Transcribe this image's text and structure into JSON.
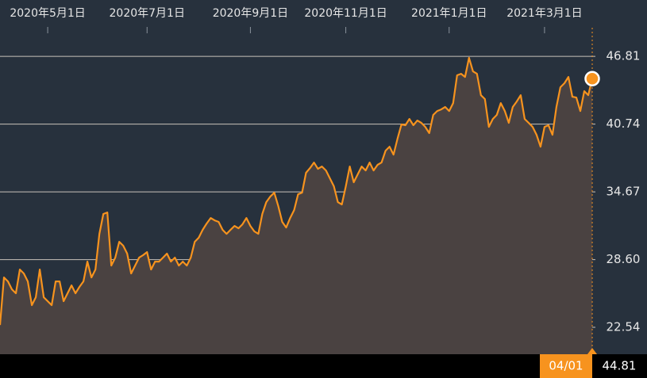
{
  "chart_data": {
    "type": "area",
    "xlim": [
      0,
      149
    ],
    "xticks": [
      {
        "value": 12,
        "label": "2020年5月1日"
      },
      {
        "value": 37,
        "label": "2020年7月1日"
      },
      {
        "value": 63,
        "label": "2020年9月1日"
      },
      {
        "value": 87,
        "label": "2020年11月1日"
      },
      {
        "value": 113,
        "label": "2021年1月1日"
      },
      {
        "value": 137,
        "label": "2021年3月1日"
      }
    ],
    "ylim": [
      20.13,
      49.37
    ],
    "yticks": [
      46.81,
      40.74,
      34.67,
      {
        "value": 28.6,
        "label": "28.60"
      },
      22.54
    ],
    "grid": true,
    "end_date_label": "04/01",
    "series": [
      {
        "color": "#f7931e",
        "values": [
          22.75,
          27.01,
          26.65,
          25.94,
          25.59,
          27.72,
          27.36,
          26.65,
          24.52,
          25.23,
          27.72,
          25.23,
          24.88,
          24.52,
          26.65,
          26.65,
          24.88,
          25.59,
          26.3,
          25.59,
          26.16,
          26.65,
          28.43,
          27.01,
          27.72,
          30.91,
          32.69,
          32.83,
          28.07,
          28.78,
          30.2,
          29.85,
          29.14,
          27.36,
          28.07,
          28.78,
          29.0,
          29.28,
          27.72,
          28.43,
          28.43,
          28.78,
          29.14,
          28.43,
          28.78,
          28.07,
          28.43,
          28.07,
          28.78,
          30.2,
          30.56,
          31.27,
          31.83,
          32.33,
          32.12,
          31.98,
          31.27,
          30.91,
          31.27,
          31.62,
          31.41,
          31.76,
          32.33,
          31.62,
          31.13,
          30.91,
          32.69,
          33.75,
          34.25,
          34.6,
          33.4,
          31.98,
          31.48,
          32.33,
          33.04,
          34.46,
          34.6,
          36.38,
          36.8,
          37.3,
          36.73,
          36.94,
          36.59,
          35.88,
          35.17,
          33.75,
          33.54,
          35.17,
          36.94,
          35.53,
          36.24,
          36.94,
          36.59,
          37.3,
          36.59,
          37.09,
          37.3,
          38.36,
          38.72,
          38.01,
          39.43,
          40.71,
          40.64,
          41.2,
          40.64,
          41.06,
          40.85,
          40.49,
          39.93,
          41.56,
          41.91,
          42.05,
          42.27,
          41.91,
          42.62,
          45.11,
          45.25,
          44.96,
          46.67,
          45.46,
          45.25,
          43.33,
          42.98,
          40.49,
          41.2,
          41.56,
          42.62,
          41.91,
          40.85,
          42.27,
          42.76,
          43.33,
          41.2,
          40.85,
          40.49,
          39.78,
          38.72,
          40.49,
          40.64,
          39.78,
          42.27,
          44.04,
          44.4,
          44.96,
          43.19,
          43.12,
          41.91,
          43.69,
          43.33,
          44.81
        ]
      }
    ]
  }
}
